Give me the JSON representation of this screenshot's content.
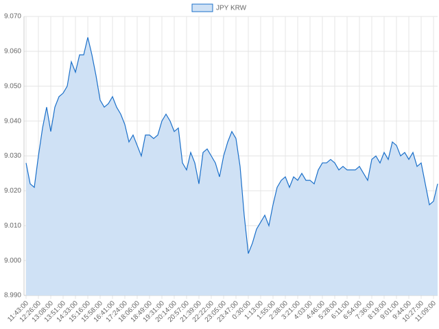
{
  "chart_data": {
    "type": "area",
    "categories": [
      "11:43:00",
      null,
      null,
      "12:26:00",
      null,
      null,
      "13:08:00",
      null,
      null,
      "13:51:00",
      null,
      null,
      "14:33:00",
      null,
      null,
      "15:16:00",
      null,
      null,
      "15:58:00",
      null,
      null,
      "16:41:00",
      null,
      null,
      "17:24:00",
      null,
      null,
      "18:06:00",
      null,
      null,
      "18:49:00",
      null,
      null,
      "19:31:00",
      null,
      null,
      "20:14:00",
      null,
      null,
      "20:57:00",
      null,
      null,
      "21:39:00",
      null,
      null,
      "22:22:00",
      null,
      null,
      "23:05:00",
      null,
      null,
      "23:47:00",
      null,
      null,
      "0:30:00",
      null,
      null,
      "1:13:00",
      null,
      null,
      "1:55:00",
      null,
      null,
      "2:38:00",
      null,
      null,
      "3:21:00",
      null,
      null,
      "4:03:00",
      null,
      null,
      "4:46:00",
      null,
      null,
      "5:28:00",
      null,
      null,
      "6:11:00",
      null,
      null,
      "6:54:00",
      null,
      null,
      "7:36:00",
      null,
      null,
      "8:19:00",
      null,
      null,
      "9:01:00",
      null,
      null,
      "9:44:00",
      null,
      null,
      "10:27:00",
      null,
      null,
      "11:09:00",
      null
    ],
    "series": [
      {
        "name": "JPY KRW",
        "color": "#1a6fc9",
        "fill": "#cfe1f5",
        "values": [
          9.028,
          9.022,
          9.021,
          9.03,
          9.038,
          9.044,
          9.037,
          9.044,
          9.047,
          9.048,
          9.05,
          9.057,
          9.054,
          9.059,
          9.059,
          9.064,
          9.059,
          9.053,
          9.046,
          9.044,
          9.045,
          9.047,
          9.044,
          9.042,
          9.039,
          9.034,
          9.036,
          9.033,
          9.03,
          9.036,
          9.036,
          9.035,
          9.036,
          9.04,
          9.042,
          9.04,
          9.037,
          9.038,
          9.028,
          9.026,
          9.031,
          9.028,
          9.022,
          9.031,
          9.032,
          9.03,
          9.028,
          9.024,
          9.03,
          9.034,
          9.037,
          9.035,
          9.027,
          9.013,
          9.002,
          9.005,
          9.009,
          9.011,
          9.013,
          9.01,
          9.016,
          9.021,
          9.023,
          9.024,
          9.021,
          9.024,
          9.023,
          9.025,
          9.023,
          9.023,
          9.022,
          9.026,
          9.028,
          9.028,
          9.029,
          9.028,
          9.026,
          9.027,
          9.026,
          9.026,
          9.026,
          9.027,
          9.025,
          9.023,
          9.029,
          9.03,
          9.028,
          9.031,
          9.029,
          9.034,
          9.033,
          9.03,
          9.031,
          9.029,
          9.031,
          9.027,
          9.028,
          9.022,
          9.016,
          9.017,
          9.022
        ]
      }
    ],
    "ylim": [
      8.99,
      9.07
    ],
    "yticks": [
      {
        "value": 8.99,
        "label": "8.990"
      },
      {
        "value": 9.0,
        "label": "9.000"
      },
      {
        "value": 9.01,
        "label": "9.010"
      },
      {
        "value": 9.02,
        "label": "9.020"
      },
      {
        "value": 9.03,
        "label": "9.030"
      },
      {
        "value": 9.04,
        "label": "9.040"
      },
      {
        "value": 9.05,
        "label": "9.050"
      },
      {
        "value": 9.06,
        "label": "9.060"
      },
      {
        "value": 9.07,
        "label": "9.070"
      }
    ],
    "grid": true,
    "legend": "top"
  }
}
